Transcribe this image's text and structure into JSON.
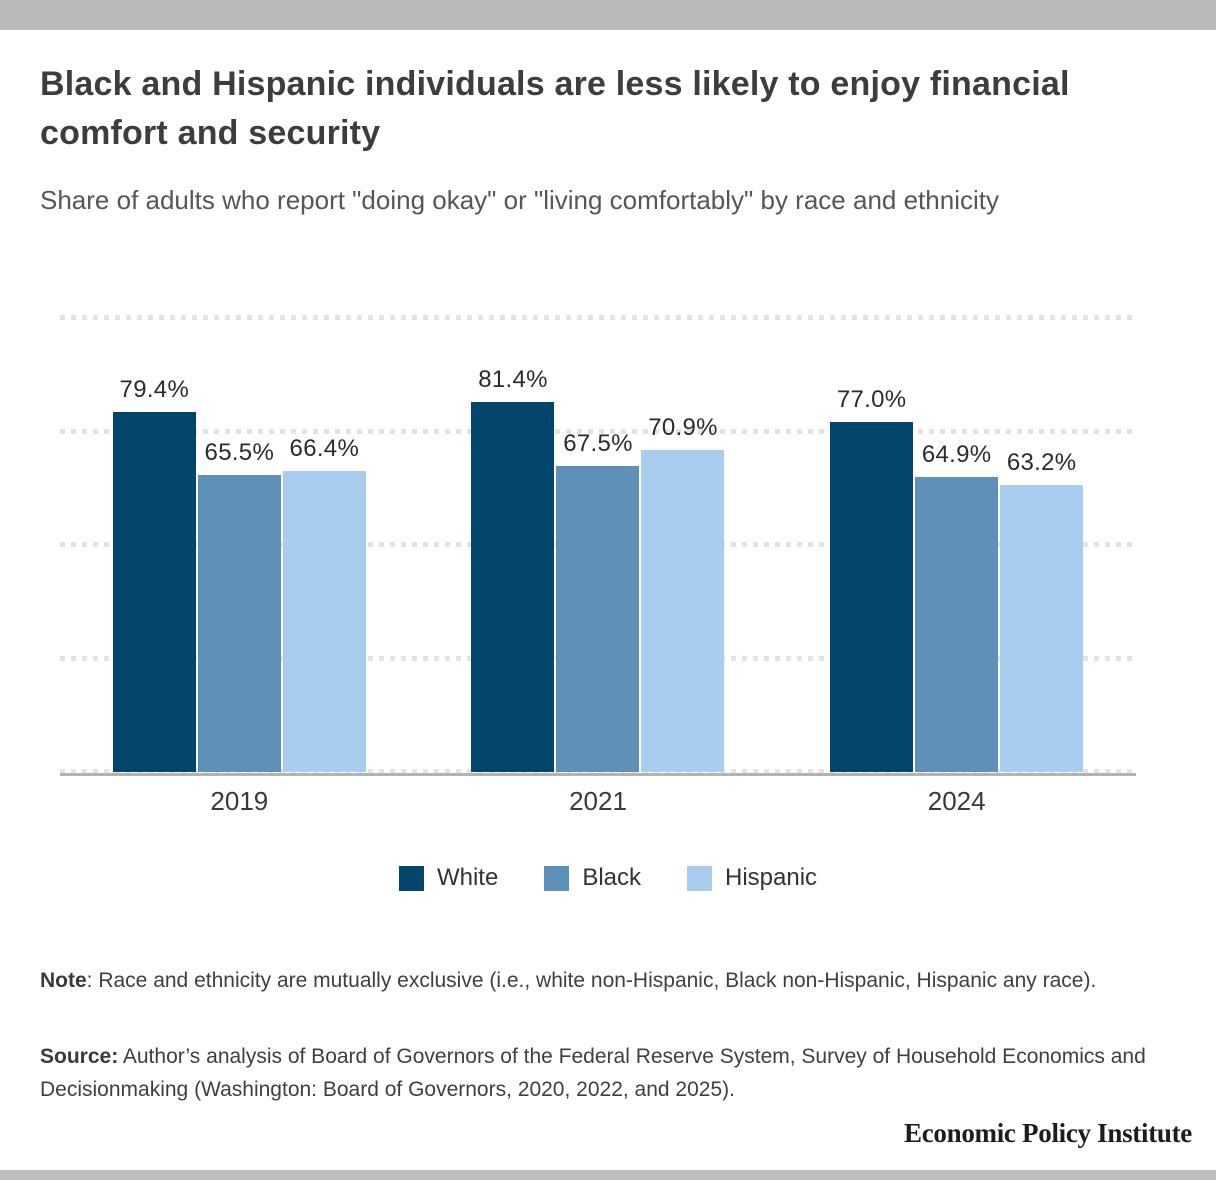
{
  "header": {
    "title": "Black and Hispanic individuals are less likely to enjoy financial comfort and security",
    "subtitle": "Share of adults who report \"doing okay\" or \"living comfortably\" by race and ethnicity"
  },
  "chart_data": {
    "type": "bar",
    "title": "Black and Hispanic individuals are less likely to enjoy financial comfort and security",
    "subtitle": "Share of adults who report \"doing okay\" or \"living comfortably\" by race and ethnicity",
    "categories": [
      "2019",
      "2021",
      "2024"
    ],
    "series": [
      {
        "name": "White",
        "color": "#03466b",
        "values": [
          79.4,
          81.4,
          77.0
        ]
      },
      {
        "name": "Black",
        "color": "#5e90b8",
        "values": [
          65.5,
          67.5,
          64.9
        ]
      },
      {
        "name": "Hispanic",
        "color": "#a9cdee",
        "values": [
          66.4,
          70.9,
          63.2
        ]
      }
    ],
    "value_suffix": "%",
    "xlabel": "",
    "ylabel": "",
    "ylim": [
      0,
      100
    ],
    "gridlines": [
      0,
      25,
      50,
      75,
      100
    ],
    "grid_style": "dotted",
    "legend_position": "bottom",
    "colors": {
      "grid": "#e3e3e3",
      "axis": "#b3b3b3",
      "value_label": "#2b2b2b"
    }
  },
  "footer": {
    "note_label": "Note",
    "note_text": ": Race and ethnicity are mutually exclusive (i.e., white non-Hispanic, Black non-Hispanic, Hispanic any race).",
    "source_label": "Source:",
    "source_text": " Author’s analysis of Board of Governors of the Federal Reserve System, Survey of Household Economics and Decisionmaking (Washington: Board of Governors, 2020, 2022, and 2025).",
    "branding": "Economic Policy Institute"
  }
}
